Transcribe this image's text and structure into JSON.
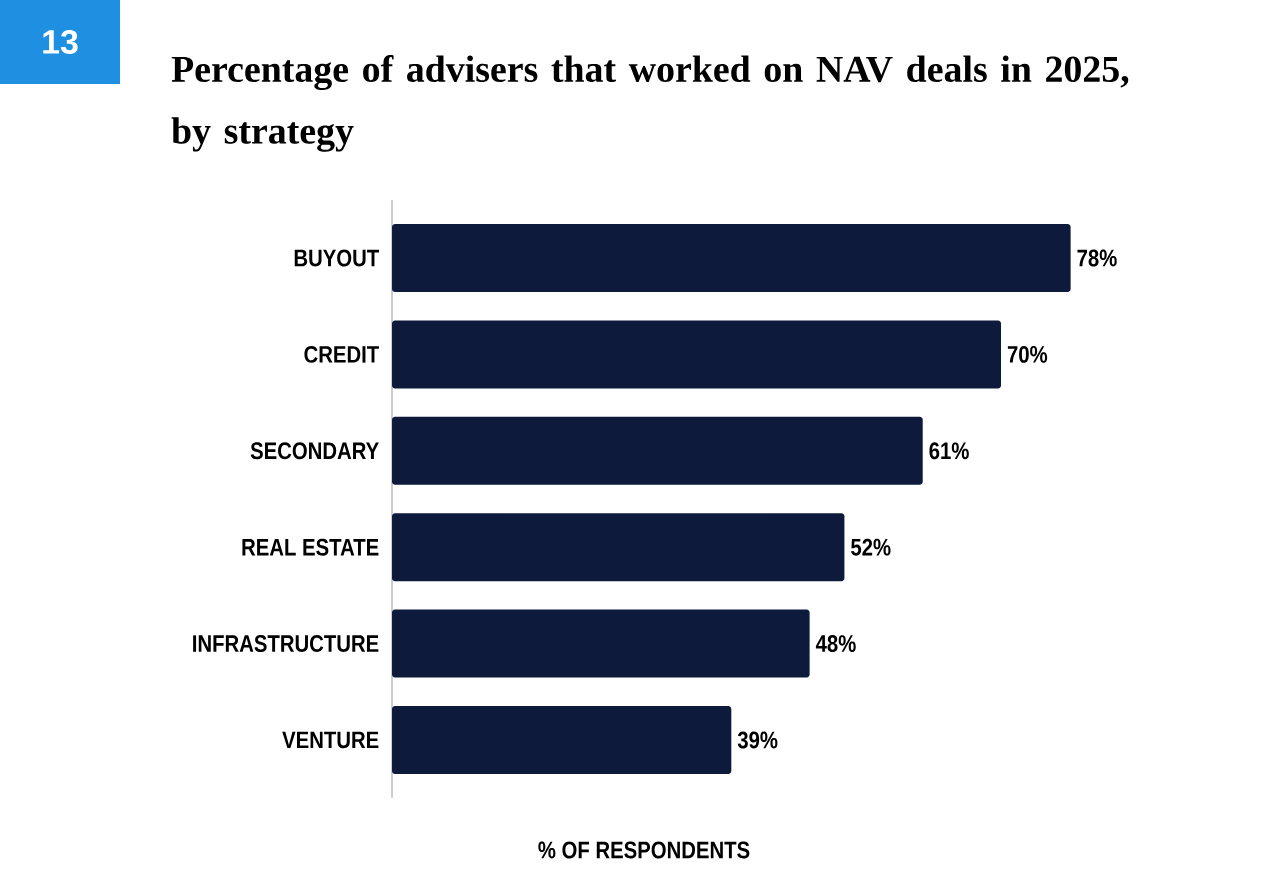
{
  "chart_data": {
    "type": "bar",
    "orientation": "horizontal",
    "title": "Percentage of advisers that worked on NAV deals in 2025, by strategy",
    "xlabel": "% OF RESPONDENTS",
    "annotations": [
      "13"
    ],
    "categories": [
      "BUYOUT",
      "CREDIT",
      "SECONDARY",
      "REAL ESTATE",
      "INFRASTRUCTURE",
      "VENTURE"
    ],
    "values": [
      78,
      70,
      61,
      52,
      48,
      39
    ],
    "value_labels": [
      "78%",
      "70%",
      "61%",
      "52%",
      "48%",
      "39%"
    ],
    "color": "#0e1a3b"
  }
}
